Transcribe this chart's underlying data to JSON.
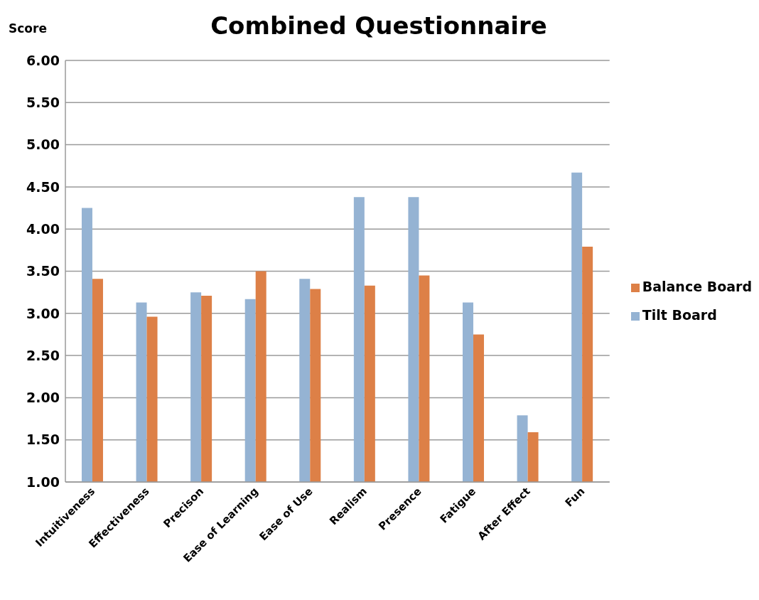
{
  "chart_data": {
    "type": "bar",
    "title": "Combined Questionnaire",
    "ylabel": "Score",
    "categories": [
      "Intuitiveness",
      "Effectiveness",
      "Precison",
      "Ease of Learning",
      "Ease of Use",
      "Realism",
      "Presence",
      "Fatigue",
      "After Effect",
      "Fun"
    ],
    "series": [
      {
        "name": "Tilt Board",
        "color": "#95b3d3",
        "values": [
          4.25,
          3.13,
          3.25,
          3.17,
          3.41,
          4.38,
          4.38,
          3.13,
          1.79,
          4.67
        ]
      },
      {
        "name": "Balance Board",
        "color": "#dd8047",
        "values": [
          3.41,
          2.96,
          3.21,
          3.5,
          3.29,
          3.33,
          3.45,
          2.75,
          1.59,
          3.79
        ]
      }
    ],
    "ylim": [
      1,
      6
    ],
    "yticks": [
      {
        "value": 1,
        "label": "1.00"
      },
      {
        "value": 1.5,
        "label": "1.50"
      },
      {
        "value": 2,
        "label": "2.00"
      },
      {
        "value": 2.5,
        "label": "2.50"
      },
      {
        "value": 3,
        "label": "3.00"
      },
      {
        "value": 3.5,
        "label": "3.50"
      },
      {
        "value": 4,
        "label": "4.00"
      },
      {
        "value": 4.5,
        "label": "4.50"
      },
      {
        "value": 5,
        "label": "5.00"
      },
      {
        "value": 5.5,
        "label": "5.50"
      },
      {
        "value": 6,
        "label": "6.00"
      }
    ],
    "grid": "y",
    "legend": "right"
  }
}
